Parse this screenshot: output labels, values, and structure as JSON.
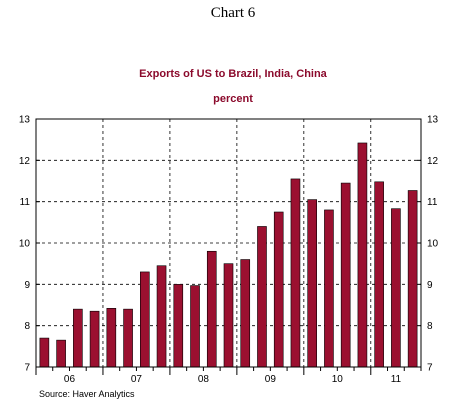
{
  "chart_data": {
    "type": "bar",
    "header": "Chart 6",
    "title": "Exports of US to Brazil, India, China",
    "subtitle": "percent",
    "xlabel": "",
    "ylabel": "",
    "ylim": [
      7,
      13
    ],
    "yticks": [
      7,
      8,
      9,
      10,
      11,
      12,
      13
    ],
    "y_tick_labels": [
      "7",
      "8",
      "9",
      "10",
      "11",
      "12",
      "13"
    ],
    "year_labels": [
      "06",
      "07",
      "08",
      "09",
      "10",
      "11"
    ],
    "categories": [
      "2006Q1",
      "2006Q2",
      "2006Q3",
      "2006Q4",
      "2007Q1",
      "2007Q2",
      "2007Q3",
      "2007Q4",
      "2008Q1",
      "2008Q2",
      "2008Q3",
      "2008Q4",
      "2009Q1",
      "2009Q2",
      "2009Q3",
      "2009Q4",
      "2010Q1",
      "2010Q2",
      "2010Q3",
      "2010Q4",
      "2011Q1",
      "2011Q2",
      "2011Q3"
    ],
    "values": [
      7.7,
      7.65,
      8.4,
      8.35,
      8.42,
      8.4,
      9.3,
      9.45,
      9.0,
      8.97,
      9.8,
      9.5,
      9.6,
      10.4,
      10.75,
      11.55,
      11.05,
      10.8,
      11.45,
      12.42,
      11.48,
      10.83,
      11.27
    ],
    "grid": true,
    "grid_style": "dashed",
    "colors": {
      "bar": "#9b1030",
      "bar_edge": "#000000",
      "title": "#8b0a2c",
      "grid": "#000000"
    },
    "source": "Source: Haver Analytics"
  }
}
